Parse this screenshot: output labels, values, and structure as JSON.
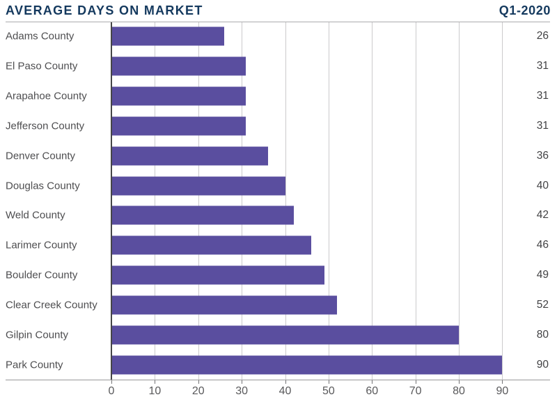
{
  "header": {
    "title": "AVERAGE DAYS ON MARKET",
    "period": "Q1-2020"
  },
  "colors": {
    "bar": "#5A4E9F",
    "heading": "#14395E",
    "category_label": "#4E4E50",
    "value_label": "#424244",
    "tick_label": "#59595B",
    "gridline": "#CBCACC",
    "zero_line": "#454547"
  },
  "chart_data": {
    "type": "bar",
    "orientation": "horizontal",
    "title": "AVERAGE DAYS ON MARKET",
    "subtitle": "Q1-2020",
    "xlabel": "",
    "ylabel": "",
    "categories": [
      "Adams County",
      "El Paso County",
      "Arapahoe County",
      "Jefferson County",
      "Denver County",
      "Douglas County",
      "Weld County",
      "Larimer County",
      "Boulder County",
      "Clear Creek County",
      "Gilpin County",
      "Park County"
    ],
    "values": [
      26,
      31,
      31,
      31,
      36,
      40,
      42,
      46,
      49,
      52,
      80,
      90
    ],
    "value_labels": [
      "26",
      "31",
      "31",
      "31",
      "36",
      "40",
      "42",
      "46",
      "49",
      "52",
      "80",
      "90"
    ],
    "xticks": [
      0,
      10,
      20,
      30,
      40,
      50,
      60,
      70,
      80,
      90
    ],
    "xlim": [
      0,
      101
    ],
    "grid": true,
    "legend": "none",
    "value_label_position": "right-edge"
  }
}
